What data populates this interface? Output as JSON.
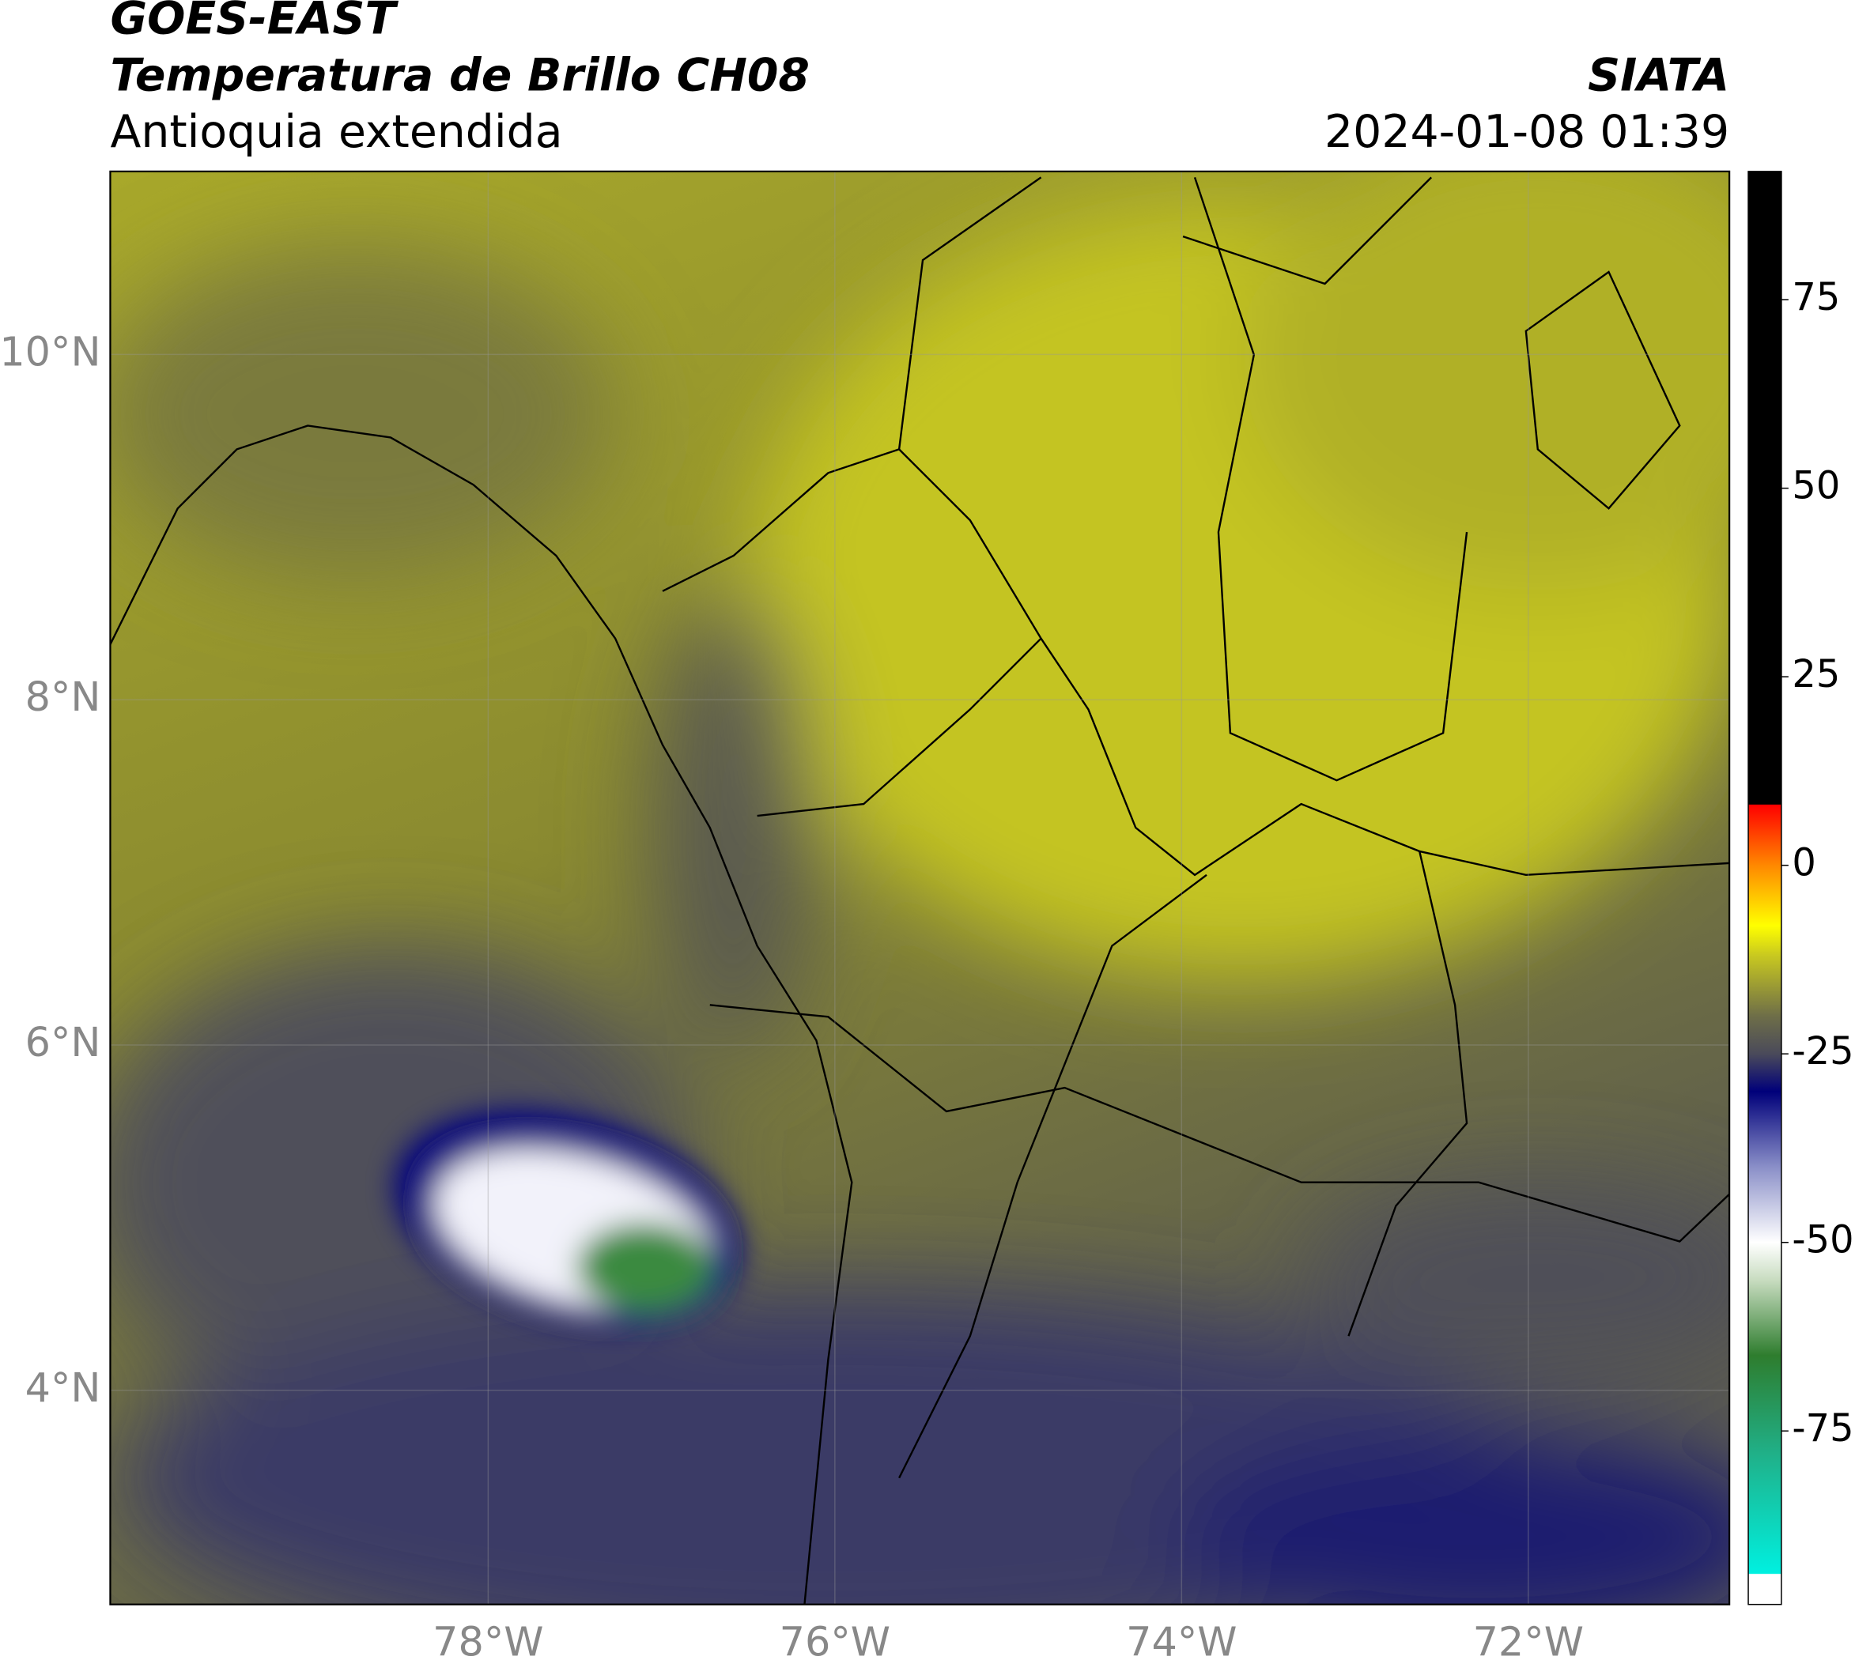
{
  "header": {
    "title": "GOES-EAST",
    "subtitle": "Temperatura de Brillo CH08",
    "region": "Antioquia extendida",
    "source": "SIATA",
    "datetime": "2024-01-08 01:39"
  },
  "map": {
    "xlim": [
      -80.18,
      -70.84
    ],
    "ylim": [
      2.76,
      11.06
    ],
    "grid": true,
    "xticks": [
      {
        "value": -78,
        "label": "78°W"
      },
      {
        "value": -76,
        "label": "76°W"
      },
      {
        "value": -74,
        "label": "74°W"
      },
      {
        "value": -72,
        "label": "72°W"
      }
    ],
    "yticks": [
      {
        "value": 4,
        "label": "4°N"
      },
      {
        "value": 6,
        "label": "6°N"
      },
      {
        "value": 8,
        "label": "8°N"
      },
      {
        "value": 10,
        "label": "10°N"
      }
    ]
  },
  "colorbar": {
    "lim": [
      -98,
      92
    ],
    "ticks": [
      75,
      50,
      25,
      0,
      -25,
      -50,
      -75
    ],
    "stops": [
      {
        "value": -98,
        "color": "#ffffff"
      },
      {
        "value": -94,
        "color": "#ffffff"
      },
      {
        "value": -93.9,
        "color": "#00f0e0"
      },
      {
        "value": -78,
        "color": "#20b088"
      },
      {
        "value": -65,
        "color": "#2e7d2e"
      },
      {
        "value": -55,
        "color": "#c8dcc0"
      },
      {
        "value": -50,
        "color": "#ffffff"
      },
      {
        "value": -40,
        "color": "#8a8fc8"
      },
      {
        "value": -30,
        "color": "#00007a"
      },
      {
        "value": -25,
        "color": "#4a4a5a"
      },
      {
        "value": -20,
        "color": "#6e6e48"
      },
      {
        "value": -12,
        "color": "#c8c820"
      },
      {
        "value": -8,
        "color": "#ffff00"
      },
      {
        "value": 0,
        "color": "#ff8800"
      },
      {
        "value": 8,
        "color": "#ff0000"
      },
      {
        "value": 8.1,
        "color": "#000000"
      },
      {
        "value": 92,
        "color": "#000000"
      }
    ]
  }
}
